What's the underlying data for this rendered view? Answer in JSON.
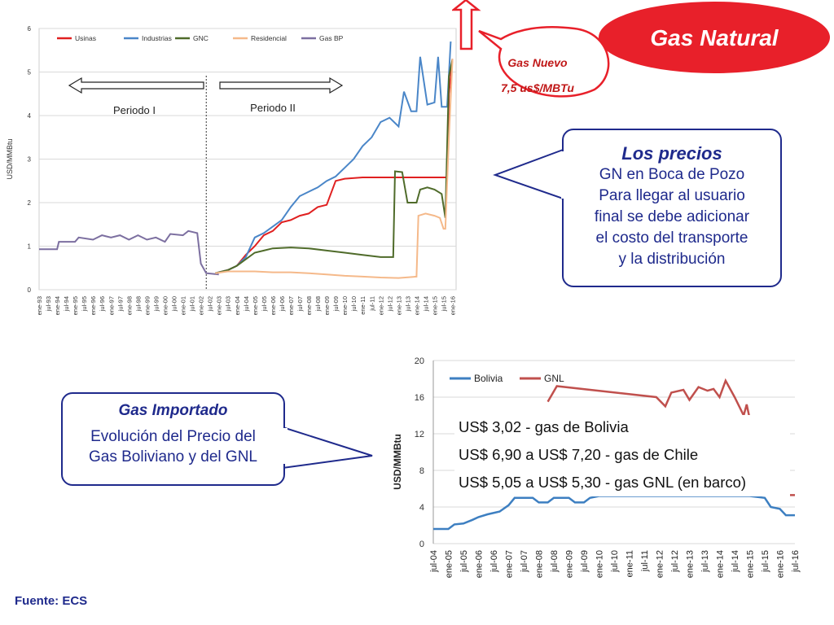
{
  "title": "Gas Natural",
  "gas_nuevo": {
    "line1": "Gas Nuevo",
    "line2": "7,5 us$/MBTu"
  },
  "precios": {
    "heading": "Los precios",
    "lines": [
      "GN en Boca de Pozo",
      "Para llegar al usuario",
      "final se debe adicionar",
      "el costo del transporte",
      "y la distribución"
    ]
  },
  "importado": {
    "heading": "Gas Importado",
    "lines": [
      "Evolución del Precio del",
      "Gas Boliviano y del GNL"
    ]
  },
  "overlay_lines": [
    "US$ 3,02 - gas de Bolivia",
    "US$ 6,90 a US$ 7,20  - gas de Chile",
    "US$ 5,05 a US$ 5,30 - gas GNL (en barco)"
  ],
  "fuente": "Fuente: ECS",
  "colors": {
    "usinas": "#e02020",
    "industrias": "#4a86c8",
    "gnc": "#4f6b2a",
    "residencial": "#f5b98a",
    "gasbp": "#7c6fa0",
    "bolivia": "#3d7fc1",
    "gnl": "#c0504d",
    "navy": "#1f2a8c",
    "ellipse": "#e8202a"
  },
  "chart_data": [
    {
      "type": "line",
      "title": "",
      "ylabel": "USD/MMBtu",
      "ylim": [
        0,
        6
      ],
      "yticks": [
        0,
        1,
        2,
        3,
        4,
        5,
        6
      ],
      "periods": [
        "Periodo I",
        "Periodo II"
      ],
      "legend": [
        "Usinas",
        "Industrias",
        "GNC",
        "Residencial",
        "Gas BP"
      ],
      "xtick_labels": [
        "ene-93",
        "jul-93",
        "ene-94",
        "jul-94",
        "ene-95",
        "jul-95",
        "ene-96",
        "jul-96",
        "ene-97",
        "jul-97",
        "ene-98",
        "jul-98",
        "ene-99",
        "jul-99",
        "ene-00",
        "jul-00",
        "ene-01",
        "jul-01",
        "ene-02",
        "jul-02",
        "ene-03",
        "jul-03",
        "ene-04",
        "jul-04",
        "ene-05",
        "jul-05",
        "ene-06",
        "jul-06",
        "ene-07",
        "jul-07",
        "ene-08",
        "jul-08",
        "ene-09",
        "jul-09",
        "ene-10",
        "jul-10",
        "ene-11",
        "jul-11",
        "ene-12",
        "jul-12",
        "ene-13",
        "jul-13",
        "ene-14",
        "jul-14",
        "ene-15",
        "jul-15",
        "ene-16"
      ],
      "series": [
        {
          "name": "Gas BP",
          "points": [
            [
              1993.0,
              0.93
            ],
            [
              1994.0,
              0.93
            ],
            [
              1994.1,
              1.1
            ],
            [
              1995.0,
              1.1
            ],
            [
              1995.2,
              1.2
            ],
            [
              1996.0,
              1.15
            ],
            [
              1996.5,
              1.25
            ],
            [
              1997.0,
              1.2
            ],
            [
              1997.5,
              1.25
            ],
            [
              1998.0,
              1.15
            ],
            [
              1998.5,
              1.25
            ],
            [
              1999.0,
              1.15
            ],
            [
              1999.5,
              1.2
            ],
            [
              2000.0,
              1.1
            ],
            [
              2000.3,
              1.28
            ],
            [
              2001.0,
              1.25
            ],
            [
              2001.3,
              1.35
            ],
            [
              2001.8,
              1.3
            ],
            [
              2002.0,
              0.6
            ],
            [
              2002.3,
              0.38
            ],
            [
              2003.0,
              0.35
            ]
          ]
        },
        {
          "name": "Usinas",
          "points": [
            [
              2002.8,
              0.38
            ],
            [
              2003.5,
              0.45
            ],
            [
              2004.0,
              0.55
            ],
            [
              2004.5,
              0.8
            ],
            [
              2005.0,
              1.0
            ],
            [
              2005.5,
              1.25
            ],
            [
              2006.0,
              1.35
            ],
            [
              2006.5,
              1.55
            ],
            [
              2007.0,
              1.6
            ],
            [
              2007.5,
              1.7
            ],
            [
              2008.0,
              1.75
            ],
            [
              2008.5,
              1.9
            ],
            [
              2009.0,
              1.95
            ],
            [
              2009.5,
              2.5
            ],
            [
              2010.0,
              2.55
            ],
            [
              2011.0,
              2.58
            ],
            [
              2012.0,
              2.58
            ],
            [
              2013.0,
              2.58
            ],
            [
              2014.0,
              2.58
            ],
            [
              2015.0,
              2.58
            ],
            [
              2015.7,
              2.58
            ],
            [
              2015.8,
              4.5
            ],
            [
              2016.0,
              5.3
            ]
          ]
        },
        {
          "name": "Industrias",
          "points": [
            [
              2002.8,
              0.38
            ],
            [
              2003.5,
              0.45
            ],
            [
              2004.0,
              0.55
            ],
            [
              2004.5,
              0.75
            ],
            [
              2005.0,
              1.2
            ],
            [
              2005.5,
              1.3
            ],
            [
              2006.0,
              1.45
            ],
            [
              2006.5,
              1.6
            ],
            [
              2007.0,
              1.9
            ],
            [
              2007.5,
              2.15
            ],
            [
              2008.0,
              2.25
            ],
            [
              2008.5,
              2.35
            ],
            [
              2009.0,
              2.5
            ],
            [
              2009.5,
              2.6
            ],
            [
              2010.0,
              2.8
            ],
            [
              2010.5,
              3.0
            ],
            [
              2011.0,
              3.3
            ],
            [
              2011.5,
              3.5
            ],
            [
              2012.0,
              3.85
            ],
            [
              2012.5,
              3.95
            ],
            [
              2013.0,
              3.75
            ],
            [
              2013.3,
              4.55
            ],
            [
              2013.7,
              4.1
            ],
            [
              2014.0,
              4.1
            ],
            [
              2014.2,
              5.35
            ],
            [
              2014.6,
              4.25
            ],
            [
              2015.0,
              4.3
            ],
            [
              2015.2,
              5.35
            ],
            [
              2015.4,
              4.2
            ],
            [
              2015.7,
              4.2
            ],
            [
              2015.9,
              5.7
            ]
          ]
        },
        {
          "name": "GNC",
          "points": [
            [
              2002.8,
              0.38
            ],
            [
              2003.5,
              0.45
            ],
            [
              2004.0,
              0.55
            ],
            [
              2004.5,
              0.7
            ],
            [
              2005.0,
              0.85
            ],
            [
              2005.5,
              0.9
            ],
            [
              2006.0,
              0.95
            ],
            [
              2007.0,
              0.97
            ],
            [
              2008.0,
              0.95
            ],
            [
              2009.0,
              0.9
            ],
            [
              2010.0,
              0.85
            ],
            [
              2011.0,
              0.8
            ],
            [
              2012.0,
              0.75
            ],
            [
              2012.7,
              0.75
            ],
            [
              2012.8,
              2.72
            ],
            [
              2013.2,
              2.7
            ],
            [
              2013.5,
              2.0
            ],
            [
              2014.0,
              2.0
            ],
            [
              2014.2,
              2.3
            ],
            [
              2014.6,
              2.35
            ],
            [
              2015.0,
              2.3
            ],
            [
              2015.4,
              2.2
            ],
            [
              2015.6,
              1.65
            ],
            [
              2015.8,
              4.9
            ],
            [
              2016.0,
              5.3
            ]
          ]
        },
        {
          "name": "Residencial",
          "points": [
            [
              2002.8,
              0.38
            ],
            [
              2003.5,
              0.42
            ],
            [
              2004.0,
              0.42
            ],
            [
              2005.0,
              0.42
            ],
            [
              2006.0,
              0.4
            ],
            [
              2007.0,
              0.4
            ],
            [
              2008.0,
              0.38
            ],
            [
              2009.0,
              0.35
            ],
            [
              2010.0,
              0.32
            ],
            [
              2011.0,
              0.3
            ],
            [
              2012.0,
              0.28
            ],
            [
              2013.0,
              0.27
            ],
            [
              2014.0,
              0.3
            ],
            [
              2014.1,
              1.7
            ],
            [
              2014.5,
              1.75
            ],
            [
              2015.0,
              1.7
            ],
            [
              2015.3,
              1.65
            ],
            [
              2015.5,
              1.4
            ],
            [
              2015.6,
              1.4
            ],
            [
              2015.8,
              3.5
            ],
            [
              2016.0,
              5.3
            ]
          ]
        }
      ]
    },
    {
      "type": "line",
      "title": "",
      "ylabel": "USD/MMBtu",
      "ylim": [
        0,
        20
      ],
      "yticks": [
        0,
        4,
        8,
        12,
        16,
        20
      ],
      "legend": [
        "Bolivia",
        "GNL"
      ],
      "xtick_labels": [
        "jul-04",
        "ene-05",
        "jul-05",
        "ene-06",
        "jul-06",
        "ene-07",
        "jul-07",
        "ene-08",
        "jul-08",
        "ene-09",
        "jul-09",
        "ene-10",
        "jul-10",
        "ene-11",
        "jul-11",
        "ene-12",
        "jul-12",
        "ene-13",
        "jul-13",
        "ene-14",
        "jul-14",
        "ene-15",
        "jul-15",
        "ene-16",
        "jul-16"
      ],
      "series": [
        {
          "name": "Bolivia",
          "points": [
            [
              2004.5,
              1.6
            ],
            [
              2005.0,
              1.6
            ],
            [
              2005.2,
              2.1
            ],
            [
              2005.5,
              2.2
            ],
            [
              2005.8,
              2.6
            ],
            [
              2006.0,
              2.9
            ],
            [
              2006.3,
              3.2
            ],
            [
              2006.7,
              3.5
            ],
            [
              2007.0,
              4.2
            ],
            [
              2007.2,
              5.0
            ],
            [
              2007.8,
              5.0
            ],
            [
              2008.0,
              4.5
            ],
            [
              2008.3,
              4.5
            ],
            [
              2008.5,
              5.0
            ],
            [
              2009.0,
              5.0
            ],
            [
              2009.2,
              4.5
            ],
            [
              2009.5,
              4.5
            ],
            [
              2009.7,
              5.0
            ],
            [
              2010.0,
              5.2
            ],
            [
              2014.5,
              5.2
            ],
            [
              2015.0,
              5.2
            ],
            [
              2015.5,
              5.0
            ],
            [
              2015.7,
              4.0
            ],
            [
              2016.0,
              3.8
            ],
            [
              2016.2,
              3.1
            ],
            [
              2016.5,
              3.1
            ]
          ]
        },
        {
          "name": "GNL",
          "points": [
            [
              2008.3,
              15.5
            ],
            [
              2008.6,
              17.2
            ],
            [
              2011.9,
              16.0
            ],
            [
              2012.2,
              15.0
            ],
            [
              2012.4,
              16.5
            ],
            [
              2012.8,
              16.8
            ],
            [
              2013.0,
              15.7
            ],
            [
              2013.3,
              17.1
            ],
            [
              2013.6,
              16.7
            ],
            [
              2013.8,
              16.9
            ],
            [
              2014.0,
              16.0
            ],
            [
              2014.2,
              17.8
            ],
            [
              2014.5,
              16.0
            ],
            [
              2014.8,
              14.0
            ],
            [
              2014.9,
              15.2
            ],
            [
              2015.3,
              9.0
            ],
            [
              2015.9,
              5.5
            ],
            [
              2016.2,
              5.3
            ],
            [
              2016.5,
              5.3
            ]
          ]
        }
      ]
    }
  ]
}
